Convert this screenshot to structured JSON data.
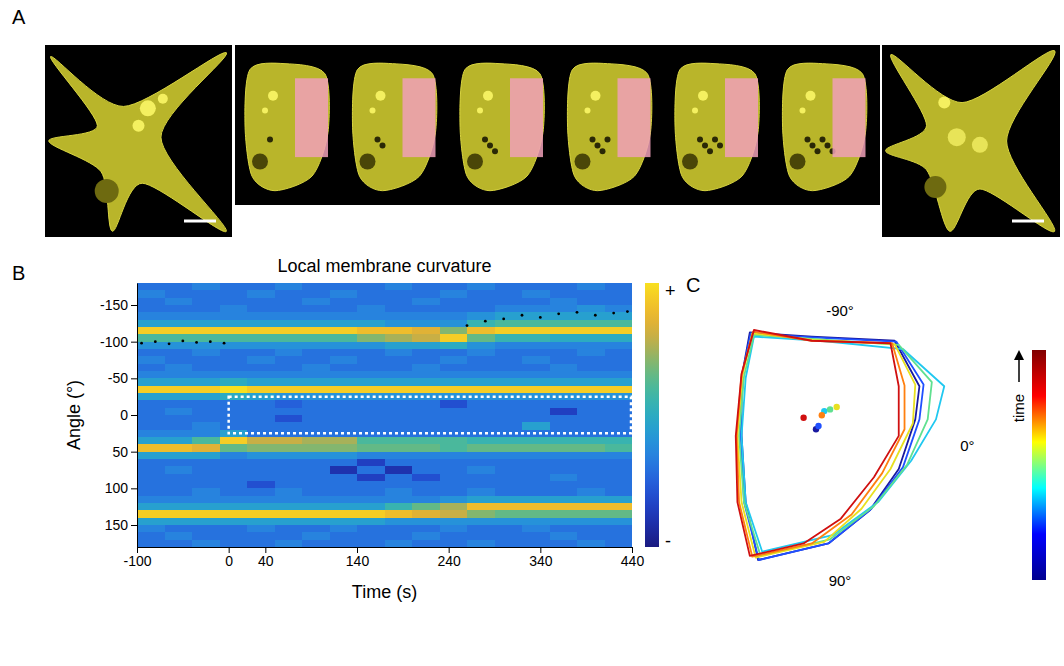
{
  "chart_data": [
    {
      "panel": "A",
      "type": "image"
    },
    {
      "panel": "B",
      "type": "heatmap",
      "title": "Local membrane curvature",
      "xlabel": "Time (s)",
      "ylabel": "Angle (°)",
      "xlim": [
        -100,
        440
      ],
      "ylim": [
        180,
        -180
      ],
      "xticks": [
        -100,
        0,
        40,
        140,
        240,
        340,
        440
      ],
      "yticks": [
        -150,
        -100,
        -50,
        0,
        50,
        100,
        150
      ],
      "x_bins": [
        -100,
        -70,
        -40,
        -10,
        20,
        50,
        80,
        110,
        140,
        170,
        200,
        230,
        260,
        290,
        320,
        350,
        380,
        410,
        440
      ],
      "y_bins": [
        -180,
        -170,
        -160,
        -150,
        -140,
        -130,
        -120,
        -110,
        -100,
        -90,
        -80,
        -70,
        -60,
        -50,
        -40,
        -30,
        -20,
        -10,
        0,
        10,
        20,
        30,
        40,
        50,
        60,
        70,
        80,
        90,
        100,
        110,
        120,
        130,
        140,
        150,
        160,
        170,
        180
      ],
      "cells": [
        [
          -0.4,
          -0.4,
          -0.3,
          -0.4,
          -0.4,
          -0.3,
          -0.4,
          -0.4,
          -0.4,
          -0.3,
          -0.4,
          -0.4,
          -0.3,
          -0.4,
          -0.4,
          -0.4,
          -0.3,
          -0.4
        ],
        [
          -0.3,
          -0.4,
          -0.4,
          -0.4,
          -0.3,
          -0.4,
          -0.4,
          -0.3,
          -0.4,
          -0.4,
          -0.4,
          -0.3,
          -0.4,
          -0.4,
          -0.3,
          -0.4,
          -0.4,
          -0.4
        ],
        [
          -0.4,
          -0.3,
          -0.4,
          -0.4,
          -0.4,
          -0.4,
          -0.3,
          -0.4,
          -0.4,
          -0.4,
          -0.3,
          -0.4,
          -0.4,
          -0.4,
          -0.4,
          -0.3,
          -0.4,
          -0.4
        ],
        [
          -0.4,
          -0.4,
          -0.4,
          -0.3,
          -0.4,
          -0.4,
          -0.4,
          -0.4,
          -0.3,
          -0.4,
          -0.4,
          -0.4,
          -0.4,
          -0.3,
          -0.3,
          -0.3,
          -0.2,
          -0.3
        ],
        [
          -0.3,
          -0.3,
          -0.3,
          -0.3,
          -0.3,
          -0.3,
          -0.3,
          -0.3,
          -0.3,
          -0.3,
          -0.3,
          -0.3,
          -0.2,
          -0.1,
          -0.1,
          -0.1,
          -0.1,
          -0.1
        ],
        [
          -0.1,
          -0.1,
          -0.1,
          -0.1,
          -0.1,
          -0.1,
          -0.1,
          -0.1,
          -0.1,
          -0.2,
          -0.2,
          -0.2,
          0.1,
          0.2,
          0.2,
          0.2,
          0.2,
          0.2
        ],
        [
          0.9,
          0.9,
          0.9,
          0.9,
          0.9,
          0.9,
          0.9,
          0.9,
          0.8,
          0.8,
          0.7,
          0.4,
          0.8,
          0.9,
          0.9,
          0.9,
          0.9,
          0.9
        ],
        [
          0.2,
          0.2,
          0.2,
          0.2,
          0.2,
          0.2,
          0.2,
          0.2,
          0.4,
          0.5,
          0.6,
          0.9,
          0.3,
          0.1,
          0.1,
          0.0,
          0.0,
          0.0
        ],
        [
          -0.2,
          -0.2,
          -0.2,
          -0.2,
          -0.2,
          -0.2,
          -0.2,
          -0.2,
          -0.2,
          -0.1,
          -0.1,
          0.0,
          -0.2,
          -0.3,
          -0.3,
          -0.3,
          -0.3,
          -0.3
        ],
        [
          -0.4,
          -0.4,
          -0.3,
          -0.4,
          -0.4,
          -0.3,
          -0.4,
          -0.4,
          -0.4,
          -0.3,
          -0.4,
          -0.4,
          -0.3,
          -0.4,
          -0.4,
          -0.4,
          -0.3,
          -0.4
        ],
        [
          -0.3,
          -0.4,
          -0.4,
          -0.4,
          -0.3,
          -0.4,
          -0.4,
          -0.3,
          -0.4,
          -0.4,
          -0.4,
          -0.3,
          -0.4,
          -0.4,
          -0.3,
          -0.4,
          -0.4,
          -0.4
        ],
        [
          -0.4,
          -0.3,
          -0.4,
          -0.4,
          -0.4,
          -0.4,
          -0.3,
          -0.4,
          -0.4,
          -0.4,
          -0.3,
          -0.4,
          -0.4,
          -0.4,
          -0.4,
          -0.3,
          -0.4,
          -0.4
        ],
        [
          -0.3,
          -0.3,
          -0.3,
          -0.3,
          -0.3,
          -0.3,
          -0.3,
          -0.3,
          -0.3,
          -0.3,
          -0.3,
          -0.3,
          -0.3,
          -0.3,
          -0.3,
          -0.3,
          -0.3,
          -0.3
        ],
        [
          -0.1,
          -0.1,
          -0.1,
          0.0,
          -0.1,
          -0.1,
          -0.1,
          -0.1,
          -0.1,
          -0.1,
          -0.1,
          -0.1,
          -0.1,
          -0.1,
          -0.1,
          -0.1,
          -0.1,
          -0.1
        ],
        [
          0.9,
          0.9,
          0.9,
          1.0,
          0.9,
          0.9,
          0.9,
          0.9,
          0.9,
          0.9,
          0.9,
          0.9,
          0.9,
          0.9,
          0.9,
          0.9,
          0.9,
          0.9
        ],
        [
          -0.1,
          -0.1,
          -0.1,
          0.0,
          -0.1,
          -0.2,
          -0.2,
          -0.2,
          -0.2,
          -0.2,
          -0.2,
          -0.2,
          -0.2,
          -0.2,
          -0.2,
          -0.2,
          -0.2,
          -0.2
        ],
        [
          -0.4,
          -0.4,
          -0.4,
          -0.4,
          -0.4,
          -0.5,
          -0.4,
          -0.4,
          -0.4,
          -0.4,
          -0.4,
          -0.6,
          -0.4,
          -0.4,
          -0.4,
          -0.4,
          -0.4,
          -0.4
        ],
        [
          -0.4,
          -0.3,
          -0.4,
          -0.4,
          -0.4,
          -0.4,
          -0.4,
          -0.4,
          -0.4,
          -0.4,
          -0.4,
          -0.4,
          -0.4,
          -0.4,
          -0.4,
          -0.7,
          -0.4,
          -0.4
        ],
        [
          -0.4,
          -0.4,
          -0.4,
          -0.4,
          -0.4,
          -0.6,
          -0.4,
          -0.4,
          -0.4,
          -0.4,
          -0.4,
          -0.4,
          -0.4,
          -0.4,
          -0.4,
          -0.4,
          -0.4,
          -0.4
        ],
        [
          -0.4,
          -0.4,
          -0.3,
          -0.4,
          -0.4,
          -0.4,
          -0.4,
          -0.4,
          -0.4,
          -0.4,
          -0.4,
          -0.4,
          -0.4,
          -0.4,
          -0.1,
          -0.4,
          -0.4,
          -0.4
        ],
        [
          -0.3,
          -0.3,
          -0.3,
          -0.1,
          -0.4,
          -0.4,
          -0.4,
          -0.4,
          -0.4,
          -0.4,
          -0.4,
          -0.4,
          -0.4,
          -0.4,
          -0.4,
          -0.4,
          -0.4,
          -0.4
        ],
        [
          -0.1,
          -0.1,
          0.2,
          0.9,
          0.6,
          0.6,
          0.5,
          0.5,
          0.2,
          0.2,
          0.2,
          0.2,
          0.1,
          0.1,
          0.1,
          0.1,
          0.1,
          0.1
        ],
        [
          0.8,
          0.8,
          0.7,
          0.3,
          0.4,
          0.4,
          0.4,
          0.4,
          0.3,
          0.3,
          0.3,
          0.2,
          0.3,
          0.3,
          0.3,
          0.3,
          0.3,
          0.2
        ],
        [
          -0.1,
          -0.1,
          -0.1,
          -0.3,
          -0.2,
          -0.2,
          -0.2,
          -0.2,
          -0.3,
          -0.3,
          -0.3,
          -0.3,
          -0.3,
          -0.3,
          -0.3,
          -0.3,
          -0.3,
          -0.3
        ],
        [
          -0.4,
          -0.4,
          -0.4,
          -0.4,
          -0.4,
          -0.4,
          -0.4,
          -0.4,
          -0.7,
          -0.4,
          -0.4,
          -0.4,
          -0.4,
          -0.4,
          -0.4,
          -0.4,
          -0.4,
          -0.4
        ],
        [
          -0.4,
          -0.3,
          -0.4,
          -0.4,
          -0.4,
          -0.4,
          -0.4,
          -0.8,
          -0.4,
          -0.8,
          -0.4,
          -0.4,
          -0.3,
          -0.4,
          -0.4,
          -0.4,
          -0.4,
          -0.4
        ],
        [
          -0.4,
          -0.4,
          -0.4,
          -0.4,
          -0.4,
          -0.4,
          -0.4,
          -0.4,
          -0.7,
          -0.4,
          -0.6,
          -0.4,
          -0.4,
          -0.4,
          -0.4,
          -0.3,
          -0.4,
          -0.4
        ],
        [
          -0.4,
          -0.4,
          -0.4,
          -0.4,
          -0.6,
          -0.4,
          -0.4,
          -0.4,
          -0.4,
          -0.4,
          -0.4,
          -0.4,
          -0.4,
          -0.4,
          -0.4,
          -0.4,
          -0.4,
          -0.4
        ],
        [
          -0.4,
          -0.4,
          -0.3,
          -0.4,
          -0.4,
          -0.3,
          -0.4,
          -0.4,
          -0.4,
          -0.3,
          -0.4,
          -0.4,
          -0.3,
          -0.4,
          -0.4,
          -0.4,
          -0.3,
          -0.4
        ],
        [
          -0.3,
          -0.3,
          -0.3,
          -0.3,
          -0.3,
          -0.3,
          -0.3,
          -0.3,
          -0.3,
          -0.3,
          -0.3,
          -0.2,
          -0.1,
          -0.1,
          -0.1,
          -0.1,
          -0.1,
          -0.1
        ],
        [
          -0.1,
          -0.1,
          -0.1,
          -0.1,
          -0.1,
          -0.1,
          -0.1,
          -0.1,
          -0.1,
          0.1,
          0.3,
          0.5,
          0.8,
          0.8,
          0.8,
          0.8,
          0.8,
          0.8
        ],
        [
          0.9,
          0.9,
          0.9,
          0.9,
          0.9,
          0.9,
          0.9,
          0.9,
          0.9,
          0.8,
          0.7,
          0.6,
          0.4,
          0.3,
          0.3,
          0.3,
          0.3,
          0.3
        ],
        [
          -0.1,
          -0.1,
          -0.1,
          -0.1,
          -0.1,
          -0.1,
          -0.1,
          -0.1,
          -0.1,
          -0.2,
          -0.2,
          -0.2,
          -0.2,
          -0.2,
          -0.2,
          -0.2,
          -0.2,
          -0.2
        ],
        [
          -0.3,
          -0.4,
          -0.4,
          -0.4,
          -0.3,
          -0.4,
          -0.4,
          -0.3,
          -0.4,
          -0.4,
          -0.4,
          -0.3,
          -0.4,
          -0.4,
          -0.3,
          -0.4,
          -0.4,
          -0.4
        ],
        [
          -0.4,
          -0.3,
          -0.4,
          -0.4,
          -0.4,
          -0.4,
          -0.3,
          -0.4,
          -0.4,
          -0.4,
          -0.3,
          -0.4,
          -0.4,
          -0.4,
          -0.4,
          -0.3,
          -0.4,
          -0.4
        ],
        [
          -0.4,
          -0.4,
          -0.3,
          -0.4,
          -0.4,
          -0.3,
          -0.4,
          -0.4,
          -0.4,
          -0.3,
          -0.4,
          -0.4,
          -0.3,
          -0.4,
          -0.4,
          -0.4,
          -0.3,
          -0.4
        ]
      ],
      "colorbar": {
        "range": [
          -1,
          1
        ],
        "ticks": [
          {
            "value": 1,
            "label": "+"
          },
          {
            "value": -1,
            "label": "-"
          }
        ]
      },
      "region": {
        "x": [
          0,
          440
        ],
        "y": [
          -25,
          25
        ],
        "line_style": "dashed",
        "color": "#ffffff"
      },
      "series": [
        {
          "x": [
            -95,
            -80,
            -65,
            -50,
            -35,
            -20,
            -5,
            260,
            280,
            300,
            320,
            340,
            360,
            380,
            400,
            420,
            435
          ],
          "values": [
            -98,
            -100,
            -97,
            -101,
            -99,
            -100,
            -98,
            -122,
            -128,
            -131,
            -136,
            -133,
            -138,
            -140,
            -136,
            -139,
            -141
          ],
          "marker": "dot",
          "color": "#000000"
        }
      ]
    },
    {
      "panel": "C",
      "type": "contour",
      "series": [
        {
          "color": "#1a1aa0",
          "x": [
            -75,
            0,
            100,
            130,
            125,
            105,
            70,
            20,
            -65,
            -80,
            -85,
            -85
          ],
          "values": [
            -105,
            -100,
            -95,
            -40,
            0,
            60,
            110,
            150,
            170,
            100,
            20,
            -50
          ]
        },
        {
          "color": "#2050ff",
          "x": [
            -74,
            0,
            102,
            135,
            130,
            110,
            72,
            20,
            -64,
            -82,
            -86,
            -85
          ],
          "values": [
            -104,
            -99,
            -94,
            -42,
            0,
            58,
            108,
            150,
            170,
            100,
            20,
            -50
          ]
        },
        {
          "color": "#20c8f0",
          "x": [
            -70,
            10,
            110,
            160,
            150,
            120,
            80,
            25,
            -60,
            -80,
            -85,
            -80
          ],
          "values": [
            -100,
            -95,
            -85,
            -40,
            0,
            50,
            100,
            140,
            160,
            100,
            20,
            -50
          ]
        },
        {
          "color": "#60e090",
          "x": [
            -70,
            5,
            105,
            145,
            140,
            115,
            75,
            22,
            -62,
            -82,
            -88,
            -82
          ],
          "values": [
            -102,
            -97,
            -90,
            -45,
            0,
            55,
            105,
            145,
            165,
            100,
            20,
            -52
          ]
        },
        {
          "color": "#e8e020",
          "x": [
            -72,
            2,
            100,
            125,
            122,
            95,
            60,
            15,
            -68,
            -85,
            -90,
            -84
          ],
          "values": [
            -104,
            -96,
            -91,
            -42,
            5,
            60,
            108,
            148,
            167,
            100,
            20,
            -53
          ]
        },
        {
          "color": "#ff8010",
          "x": [
            -71,
            0,
            97,
            112,
            112,
            85,
            48,
            0,
            -72,
            -88,
            -91,
            -85
          ],
          "values": [
            -106,
            -95,
            -92,
            -41,
            12,
            65,
            115,
            150,
            166,
            100,
            20,
            -54
          ]
        },
        {
          "color": "#d01010",
          "x": [
            -70,
            0,
            95,
            105,
            105,
            75,
            35,
            -10,
            -75,
            -90,
            -92,
            -85
          ],
          "values": [
            -108,
            -95,
            -92,
            -40,
            20,
            70,
            120,
            150,
            165,
            100,
            20,
            -55
          ]
        }
      ],
      "centroid": {
        "x": [
          5,
          8,
          15,
          22,
          30,
          12,
          -10
        ],
        "values": [
          12,
          8,
          -10,
          -12,
          -15,
          -5,
          -2
        ]
      },
      "angle_labels": [
        {
          "value": -90,
          "label": "-90°"
        },
        {
          "value": 0,
          "label": "0°"
        },
        {
          "value": 90,
          "label": "90°"
        }
      ],
      "colorbar": {
        "label": "time",
        "colors": [
          "#00008f",
          "#0000ff",
          "#00ffff",
          "#ffff00",
          "#ff0000",
          "#800000"
        ]
      }
    }
  ]
}
